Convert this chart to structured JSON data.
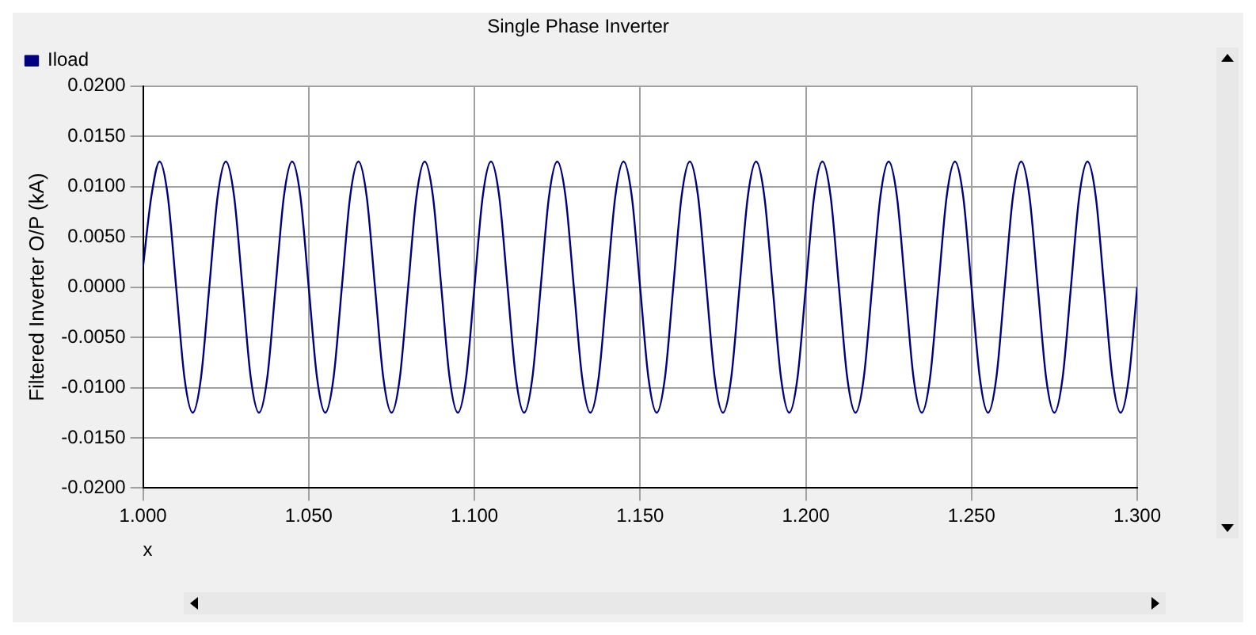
{
  "chart_data": {
    "type": "line",
    "title": "Single Phase Inverter",
    "xlabel": "x",
    "ylabel": "Filtered Inverter O/P (kA)",
    "x": [
      1.0,
      1.0025,
      1.005,
      1.0075,
      1.01,
      1.0125,
      1.015,
      1.0175,
      1.02,
      1.0225,
      1.025,
      1.0275,
      1.03,
      1.0325,
      1.035,
      1.0375,
      1.04,
      1.0425,
      1.045,
      1.0475,
      1.05,
      1.0525,
      1.055,
      1.0575,
      1.06,
      1.0625,
      1.065,
      1.0675,
      1.07,
      1.0725,
      1.075,
      1.0775,
      1.08,
      1.0825,
      1.085,
      1.0875,
      1.09,
      1.0925,
      1.095,
      1.0975,
      1.1,
      1.1025,
      1.105,
      1.1075,
      1.11,
      1.1125,
      1.115,
      1.1175,
      1.12,
      1.1225,
      1.125,
      1.1275,
      1.13,
      1.1325,
      1.135,
      1.1375,
      1.14,
      1.1425,
      1.145,
      1.1475,
      1.15,
      1.1525,
      1.155,
      1.1575,
      1.16,
      1.1625,
      1.165,
      1.1675,
      1.17,
      1.1725,
      1.175,
      1.1775,
      1.18,
      1.1825,
      1.185,
      1.1875,
      1.19,
      1.1925,
      1.195,
      1.1975,
      1.2,
      1.2025,
      1.205,
      1.2075,
      1.21,
      1.2125,
      1.215,
      1.2175,
      1.22,
      1.2225,
      1.225,
      1.2275,
      1.23,
      1.2325,
      1.235,
      1.2375,
      1.24,
      1.2425,
      1.245,
      1.2475,
      1.25,
      1.2525,
      1.255,
      1.2575,
      1.26,
      1.2625,
      1.265,
      1.2675,
      1.27,
      1.2725,
      1.275,
      1.2775,
      1.28,
      1.2825,
      1.285,
      1.2875,
      1.29,
      1.2925,
      1.295,
      1.2975,
      1.3
    ],
    "series": [
      {
        "name": "Iload",
        "color": "#000080",
        "values": [
          0.002,
          0.009,
          0.0125,
          0.009,
          0,
          -0.009,
          -0.0125,
          -0.009,
          0,
          0.009,
          0.0125,
          0.009,
          0,
          -0.009,
          -0.0125,
          -0.009,
          0,
          0.009,
          0.0125,
          0.009,
          0,
          -0.009,
          -0.0125,
          -0.009,
          0,
          0.009,
          0.0125,
          0.009,
          0,
          -0.009,
          -0.0125,
          -0.009,
          0,
          0.009,
          0.0125,
          0.009,
          0,
          -0.009,
          -0.0125,
          -0.009,
          0,
          0.009,
          0.0125,
          0.009,
          0,
          -0.009,
          -0.0125,
          -0.009,
          0,
          0.009,
          0.0125,
          0.009,
          0,
          -0.009,
          -0.0125,
          -0.009,
          0,
          0.009,
          0.0125,
          0.009,
          0,
          -0.009,
          -0.0125,
          -0.009,
          0,
          0.009,
          0.0125,
          0.009,
          0,
          -0.009,
          -0.0125,
          -0.009,
          0,
          0.009,
          0.0125,
          0.009,
          0,
          -0.009,
          -0.0125,
          -0.009,
          0,
          0.009,
          0.0125,
          0.009,
          0,
          -0.009,
          -0.0125,
          -0.009,
          0,
          0.009,
          0.0125,
          0.009,
          0,
          -0.009,
          -0.0125,
          -0.009,
          0,
          0.009,
          0.0125,
          0.009,
          0,
          -0.009,
          -0.0125,
          -0.009,
          0,
          0.009,
          0.0125,
          0.009,
          0,
          -0.009,
          -0.0125,
          -0.009,
          0,
          0.009,
          0.0125,
          0.009,
          0,
          -0.009,
          -0.0125,
          -0.009,
          0
        ]
      }
    ],
    "xlim": [
      1.0,
      1.3
    ],
    "xticks": [
      {
        "value": 1.0,
        "label": "1.000"
      },
      {
        "value": 1.05,
        "label": "1.050"
      },
      {
        "value": 1.1,
        "label": "1.100"
      },
      {
        "value": 1.15,
        "label": "1.150"
      },
      {
        "value": 1.2,
        "label": "1.200"
      },
      {
        "value": 1.25,
        "label": "1.250"
      },
      {
        "value": 1.3,
        "label": "1.300"
      }
    ],
    "ylim": [
      -0.02,
      0.02
    ],
    "yticks": [
      {
        "value": -0.02,
        "label": "-0.0200"
      },
      {
        "value": -0.015,
        "label": "-0.0150"
      },
      {
        "value": -0.01,
        "label": "-0.0100"
      },
      {
        "value": -0.005,
        "label": "-0.0050"
      },
      {
        "value": 0,
        "label": "0.0000"
      },
      {
        "value": 0.005,
        "label": "0.0050"
      },
      {
        "value": 0.01,
        "label": "0.0100"
      },
      {
        "value": 0.015,
        "label": "0.0150"
      },
      {
        "value": 0.02,
        "label": "0.0200"
      }
    ],
    "grid": true,
    "legend": "top left",
    "marker": "none",
    "line_style": "solid"
  }
}
